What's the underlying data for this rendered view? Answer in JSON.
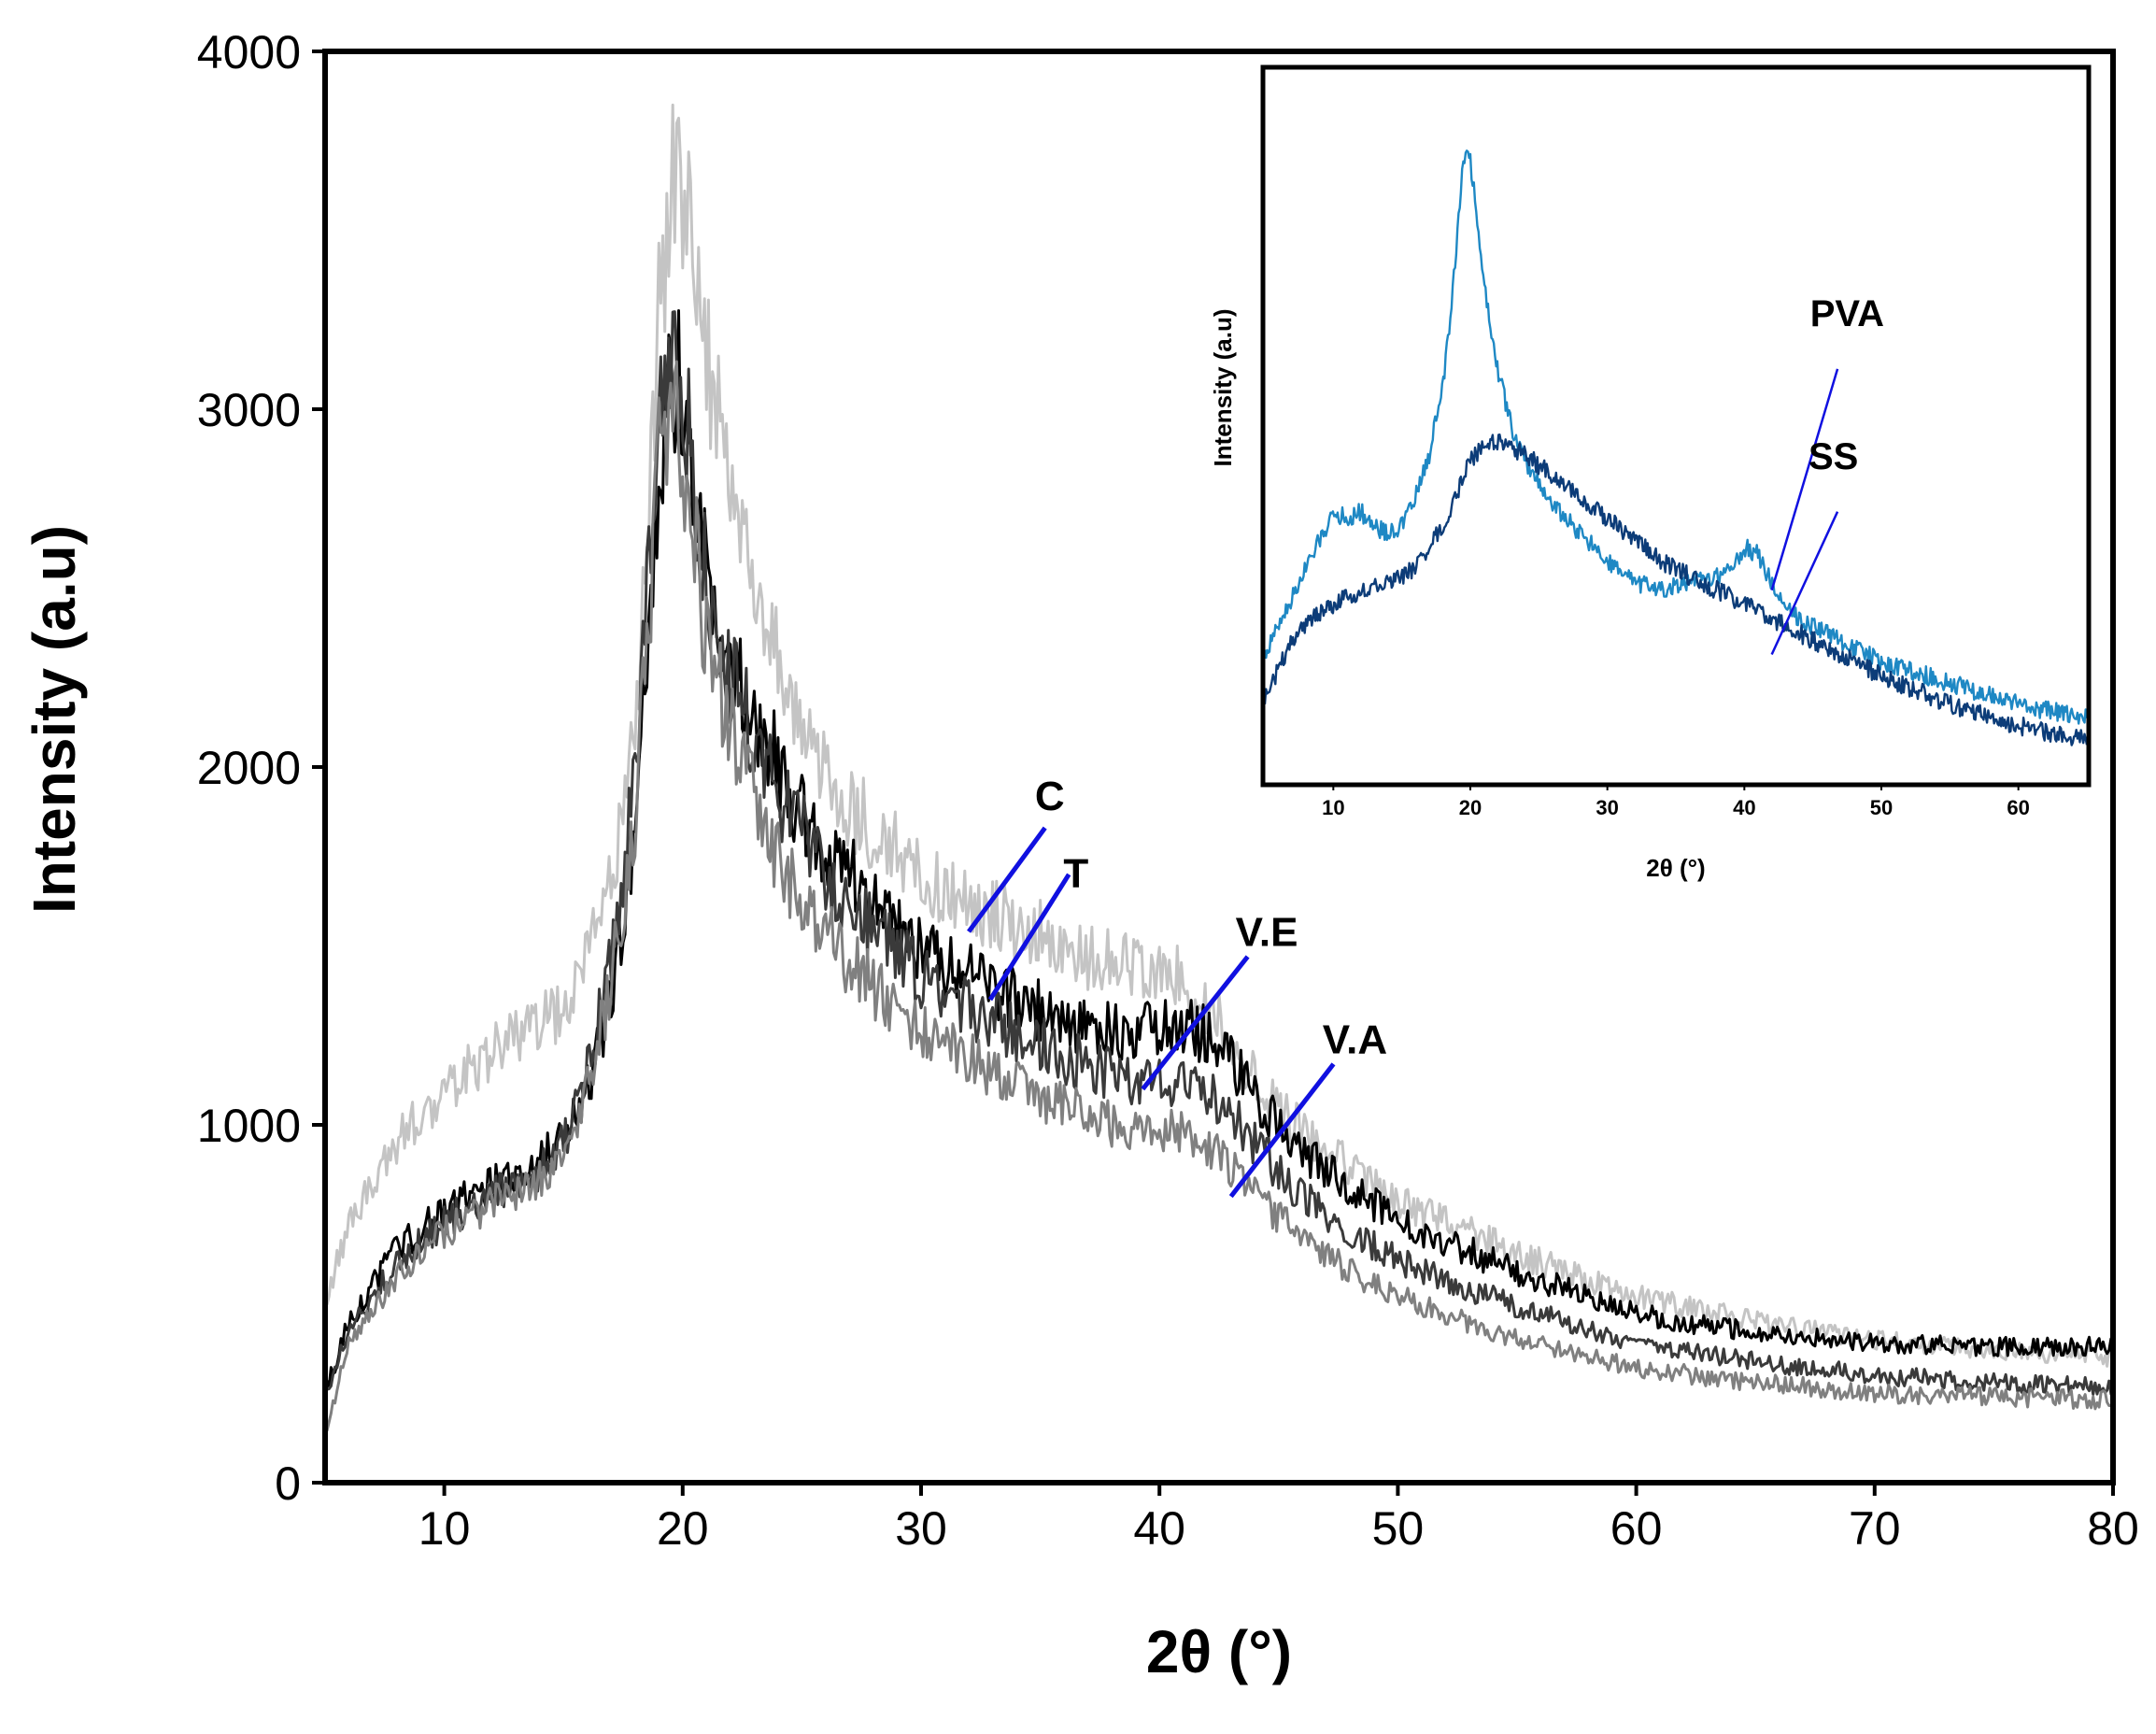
{
  "chart_data": [
    {
      "type": "line",
      "title": "",
      "xlabel": "2θ (°)",
      "ylabel": "Intensity (a.u)",
      "xlim": [
        5,
        80
      ],
      "ylim": [
        0,
        4000
      ],
      "xticks": [
        10,
        20,
        30,
        40,
        50,
        60,
        70,
        80
      ],
      "yticks": [
        0,
        1000,
        2000,
        3000,
        4000
      ],
      "legend": "inline labels",
      "series": [
        {
          "name": "C",
          "color": "#c4c4c4",
          "x": [
            5,
            6,
            8,
            10,
            12,
            14,
            15,
            16,
            17,
            18,
            18.5,
            19,
            19.5,
            19.8,
            20.2,
            21,
            22,
            23,
            24,
            25,
            26,
            28,
            30,
            32,
            34,
            36,
            38,
            40,
            41,
            42,
            43,
            44,
            45,
            46,
            48,
            50,
            55,
            60,
            65,
            70,
            75,
            80
          ],
          "values": [
            500,
            720,
            950,
            1100,
            1200,
            1280,
            1330,
            1450,
            1700,
            2100,
            2600,
            3250,
            3620,
            3700,
            3550,
            3150,
            2800,
            2500,
            2280,
            2100,
            1980,
            1820,
            1700,
            1620,
            1560,
            1500,
            1450,
            1440,
            1420,
            1330,
            1230,
            1130,
            1050,
            980,
            880,
            790,
            640,
            520,
            450,
            400,
            370,
            350
          ],
          "label_pos": {
            "x": 35.4,
            "y": 1880
          },
          "leader": {
            "x1": 32,
            "y1": 1540,
            "x2": 35.2,
            "y2": 1830
          }
        },
        {
          "name": "T",
          "color": "#000000",
          "x": [
            5,
            6,
            8,
            10,
            12,
            14,
            15,
            16,
            17,
            18,
            18.5,
            19,
            19.5,
            19.8,
            20.2,
            21,
            22,
            23,
            24,
            25,
            26,
            28,
            30,
            32,
            34,
            36,
            38,
            40,
            41,
            42,
            43,
            44,
            45,
            46,
            48,
            50,
            55,
            60,
            65,
            70,
            75,
            80
          ],
          "values": [
            250,
            450,
            650,
            760,
            830,
            900,
            960,
            1100,
            1350,
            1800,
            2300,
            2850,
            3050,
            3100,
            2950,
            2550,
            2300,
            2150,
            2000,
            1880,
            1780,
            1620,
            1500,
            1420,
            1350,
            1290,
            1260,
            1260,
            1280,
            1250,
            1180,
            1080,
            1000,
            920,
            820,
            730,
            590,
            470,
            420,
            390,
            380,
            380
          ],
          "label_pos": {
            "x": 36.5,
            "y": 1665
          },
          "leader": {
            "x1": 32.9,
            "y1": 1350,
            "x2": 36.2,
            "y2": 1700
          }
        },
        {
          "name": "V.E",
          "color": "#3a3a3a",
          "x": [
            5,
            6,
            8,
            10,
            12,
            14,
            15,
            16,
            17,
            18,
            18.5,
            19,
            19.5,
            19.8,
            20.2,
            21,
            22,
            23,
            24,
            25,
            26,
            28,
            30,
            32,
            34,
            36,
            38,
            40,
            41,
            42,
            43,
            44,
            45,
            46,
            48,
            50,
            55,
            60,
            65,
            70,
            75,
            80
          ],
          "values": [
            250,
            420,
            620,
            730,
            800,
            870,
            950,
            1150,
            1450,
            1950,
            2450,
            2950,
            3080,
            3100,
            2950,
            2500,
            2250,
            2080,
            1930,
            1810,
            1700,
            1540,
            1420,
            1330,
            1260,
            1190,
            1140,
            1120,
            1130,
            1100,
            1030,
            950,
            870,
            800,
            700,
            620,
            490,
            390,
            340,
            300,
            280,
            270
          ],
          "label_pos": {
            "x": 44.5,
            "y": 1500
          },
          "leader": {
            "x1": 39.3,
            "y1": 1100,
            "x2": 43.7,
            "y2": 1470
          }
        },
        {
          "name": "V.A",
          "color": "#808080",
          "x": [
            5,
            6,
            8,
            10,
            12,
            14,
            15,
            16,
            17,
            18,
            18.5,
            19,
            19.5,
            19.8,
            20.2,
            21,
            22,
            23,
            24,
            25,
            26,
            28,
            30,
            32,
            34,
            36,
            38,
            40,
            41,
            42,
            43,
            44,
            45,
            46,
            48,
            50,
            55,
            60,
            65,
            70,
            75,
            80
          ],
          "values": [
            150,
            380,
            580,
            700,
            780,
            850,
            930,
            1100,
            1400,
            1850,
            2350,
            2850,
            2950,
            2960,
            2800,
            2350,
            2100,
            1900,
            1750,
            1630,
            1530,
            1380,
            1260,
            1180,
            1110,
            1050,
            1000,
            990,
            990,
            950,
            880,
            800,
            740,
            680,
            590,
            520,
            400,
            320,
            280,
            250,
            240,
            230
          ],
          "label_pos": {
            "x": 48.2,
            "y": 1200
          },
          "leader": {
            "x1": 43,
            "y1": 800,
            "x2": 47.3,
            "y2": 1170
          }
        }
      ]
    },
    {
      "type": "line",
      "title": "",
      "xlabel": "2θ (°)",
      "ylabel": "Intensity (a.u)",
      "xlim": [
        5,
        65
      ],
      "ylim": [
        0,
        100
      ],
      "xticks": [
        10,
        20,
        30,
        40,
        50,
        60
      ],
      "legend": "inline labels",
      "series": [
        {
          "name": "PVA",
          "color": "#1e88c4",
          "x": [
            5,
            7,
            9,
            10,
            11,
            12,
            13,
            14,
            15,
            16,
            17,
            18,
            18.5,
            19,
            19.5,
            19.8,
            20.2,
            21,
            22,
            23,
            24,
            25,
            26,
            28,
            30,
            32,
            34,
            36,
            38,
            39,
            40,
            41,
            42,
            43,
            44,
            46,
            48,
            50,
            55,
            60,
            65
          ],
          "values": [
            18,
            26,
            34,
            38,
            37,
            38,
            36,
            35,
            36,
            40,
            46,
            56,
            64,
            76,
            87,
            90,
            84,
            70,
            58,
            50,
            45,
            42,
            39,
            35,
            31,
            28,
            27,
            28,
            29,
            30,
            33,
            32,
            28,
            25,
            23,
            21,
            19,
            17,
            14,
            11,
            9
          ],
          "label_pos": {
            "x": 47.5,
            "y": 64
          },
          "leader": {
            "x1": 42,
            "y1": 27,
            "x2": 46.8,
            "y2": 58
          }
        },
        {
          "name": "SS",
          "color": "#0c3c78",
          "x": [
            5,
            7,
            9,
            10,
            12,
            14,
            16,
            18,
            20,
            21,
            22,
            23,
            24,
            26,
            28,
            30,
            32,
            34,
            36,
            38,
            40,
            42,
            44,
            46,
            48,
            50,
            55,
            60,
            65
          ],
          "values": [
            12,
            20,
            24,
            25,
            27,
            28,
            30,
            36,
            45,
            47,
            48,
            47,
            46,
            43,
            40,
            37,
            34,
            31,
            29,
            27,
            25,
            23,
            21,
            19,
            17,
            15,
            11,
            8,
            6
          ],
          "label_pos": {
            "x": 46.5,
            "y": 44
          },
          "leader": {
            "x1": 42,
            "y1": 18,
            "x2": 46.8,
            "y2": 38
          }
        }
      ]
    }
  ]
}
